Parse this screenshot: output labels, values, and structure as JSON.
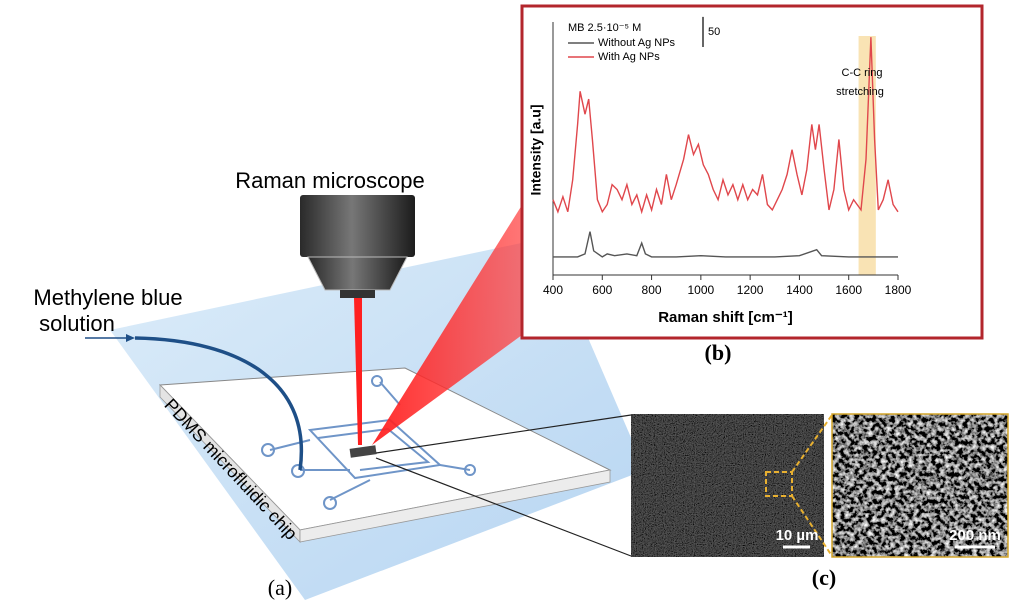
{
  "labels": {
    "microscope": "Raman microscope",
    "solution_line1": "Methylene blue",
    "solution_line2": "solution",
    "chip": "PDMS microfluidic chip",
    "panel_a": "(a)",
    "panel_b": "(b)",
    "panel_c": "(c)",
    "sem_scale_1": "10 µm",
    "sem_scale_2": "200 nm"
  },
  "spectrum": {
    "type": "line",
    "legend_title": "MB 2.5·10⁻⁵ M",
    "xlabel": "Raman shift [cm⁻¹]",
    "ylabel": "Intensity [a.u]",
    "xlim": [
      400,
      1800
    ],
    "ylim": [
      0,
      420
    ],
    "xticks": [
      400,
      600,
      800,
      1000,
      1200,
      1400,
      1600,
      1800
    ],
    "scale_bar": 50,
    "highlight": [
      1640,
      1710
    ],
    "annotation_line1": "C-C ring",
    "annotation_line2": "stretching",
    "series": [
      {
        "name": "Without Ag NPs",
        "color": "#555555",
        "x": [
          400,
          500,
          530,
          550,
          565,
          600,
          620,
          650,
          700,
          740,
          760,
          775,
          800,
          900,
          1000,
          1100,
          1200,
          1300,
          1400,
          1470,
          1490,
          1600,
          1700,
          1800
        ],
        "values": [
          30,
          30,
          35,
          72,
          40,
          30,
          35,
          32,
          35,
          32,
          53,
          35,
          30,
          30,
          32,
          30,
          30,
          30,
          32,
          42,
          32,
          30,
          30,
          30
        ]
      },
      {
        "name": "With Ag NPs",
        "color": "#e0474c",
        "x": [
          400,
          420,
          440,
          460,
          480,
          500,
          510,
          530,
          545,
          560,
          580,
          600,
          620,
          640,
          660,
          680,
          700,
          720,
          740,
          760,
          780,
          800,
          820,
          840,
          860,
          880,
          900,
          930,
          950,
          970,
          990,
          1010,
          1030,
          1050,
          1070,
          1090,
          1110,
          1130,
          1150,
          1170,
          1190,
          1210,
          1230,
          1250,
          1270,
          1290,
          1310,
          1330,
          1350,
          1370,
          1390,
          1410,
          1430,
          1450,
          1465,
          1480,
          1500,
          1520,
          1540,
          1560,
          1580,
          1600,
          1620,
          1650,
          1670,
          1690,
          1705,
          1720,
          1740,
          1760,
          1780,
          1800
        ],
        "values": [
          125,
          105,
          130,
          105,
          158,
          250,
          305,
          267,
          292,
          225,
          125,
          105,
          117,
          150,
          142,
          125,
          150,
          117,
          133,
          105,
          133,
          108,
          142,
          117,
          167,
          125,
          150,
          192,
          233,
          200,
          217,
          183,
          167,
          142,
          125,
          158,
          133,
          150,
          125,
          150,
          125,
          142,
          133,
          167,
          117,
          108,
          125,
          142,
          167,
          208,
          167,
          133,
          175,
          250,
          208,
          250,
          175,
          108,
          142,
          225,
          142,
          108,
          125,
          108,
          192,
          395,
          225,
          108,
          125,
          158,
          117,
          105
        ]
      }
    ]
  }
}
